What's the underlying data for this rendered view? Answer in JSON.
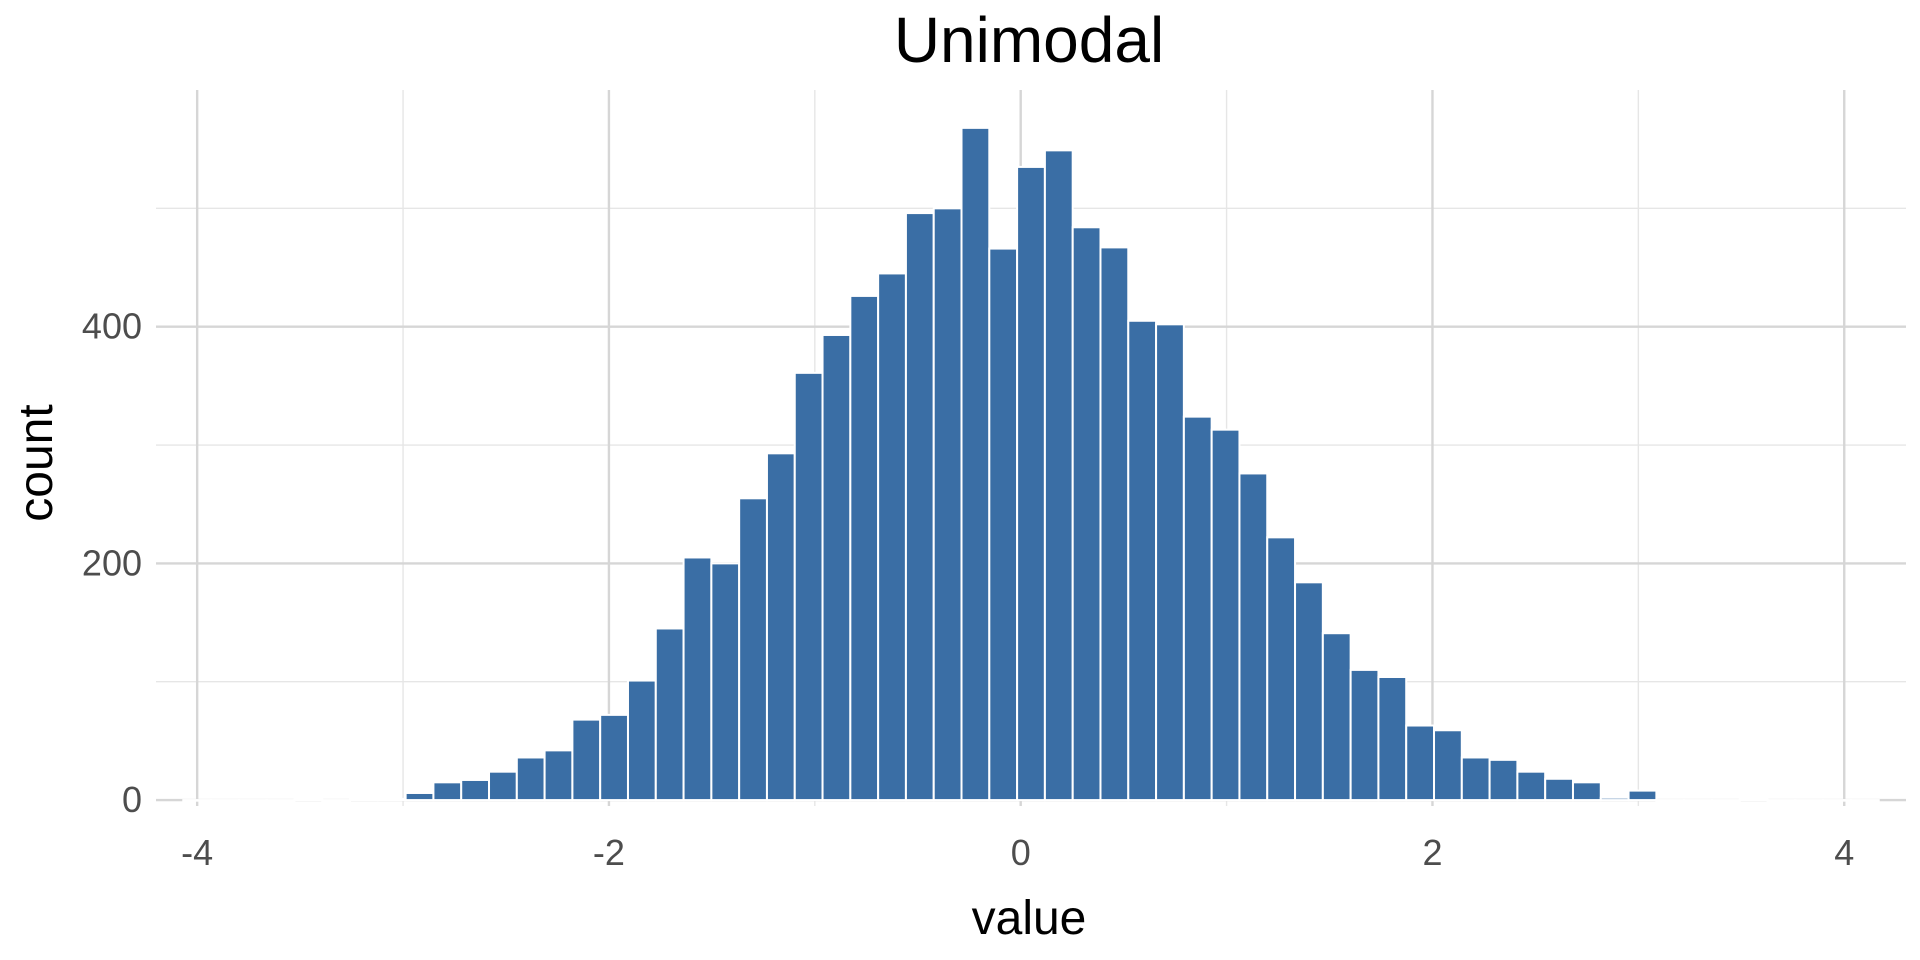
{
  "chart_data": {
    "type": "bar",
    "title": "Unimodal",
    "xlabel": "value",
    "ylabel": "count",
    "grid": true,
    "xlim": [
      -4.2,
      4.3
    ],
    "ylim": [
      -5,
      600
    ],
    "x_ticks": [
      -4,
      -2,
      0,
      2,
      4
    ],
    "x_tick_labels": [
      "-4",
      "-2",
      "0",
      "2",
      "4"
    ],
    "y_ticks": [
      0,
      200,
      400
    ],
    "y_tick_labels": [
      "0",
      "200",
      "400"
    ],
    "y_minor_ticks": [
      100,
      300,
      500
    ],
    "x_minor_ticks": [
      -3,
      -1,
      1,
      3
    ],
    "bin_width": 0.135,
    "bin_centers": [
      -4.0,
      -3.865,
      -3.73,
      -3.595,
      -3.46,
      -3.325,
      -3.19,
      -3.055,
      -2.92,
      -2.785,
      -2.65,
      -2.515,
      -2.38,
      -2.245,
      -2.11,
      -1.975,
      -1.84,
      -1.705,
      -1.57,
      -1.435,
      -1.3,
      -1.165,
      -1.03,
      -0.895,
      -0.76,
      -0.625,
      -0.49,
      -0.355,
      -0.22,
      -0.085,
      0.05,
      0.185,
      0.32,
      0.455,
      0.59,
      0.725,
      0.86,
      0.995,
      1.13,
      1.265,
      1.4,
      1.535,
      1.67,
      1.805,
      1.94,
      2.075,
      2.21,
      2.345,
      2.48,
      2.615,
      2.75,
      2.885,
      3.02,
      3.155,
      3.29,
      3.425,
      3.56,
      3.695,
      3.83,
      3.965,
      4.1
    ],
    "values": [
      0,
      0,
      0,
      0,
      1,
      0,
      1,
      1,
      6,
      15,
      17,
      24,
      36,
      42,
      68,
      72,
      101,
      145,
      205,
      200,
      255,
      293,
      361,
      393,
      426,
      445,
      496,
      500,
      568,
      466,
      535,
      549,
      484,
      467,
      405,
      402,
      324,
      313,
      276,
      222,
      184,
      141,
      110,
      104,
      63,
      59,
      36,
      34,
      24,
      18,
      15,
      2,
      8,
      0,
      0,
      0,
      1,
      0,
      0,
      0,
      0
    ],
    "colors": {
      "bar_fill": "#3a6ea5",
      "bar_outline": "#ffffff",
      "grid": "#d6d6d6",
      "background": "#ffffff"
    }
  }
}
